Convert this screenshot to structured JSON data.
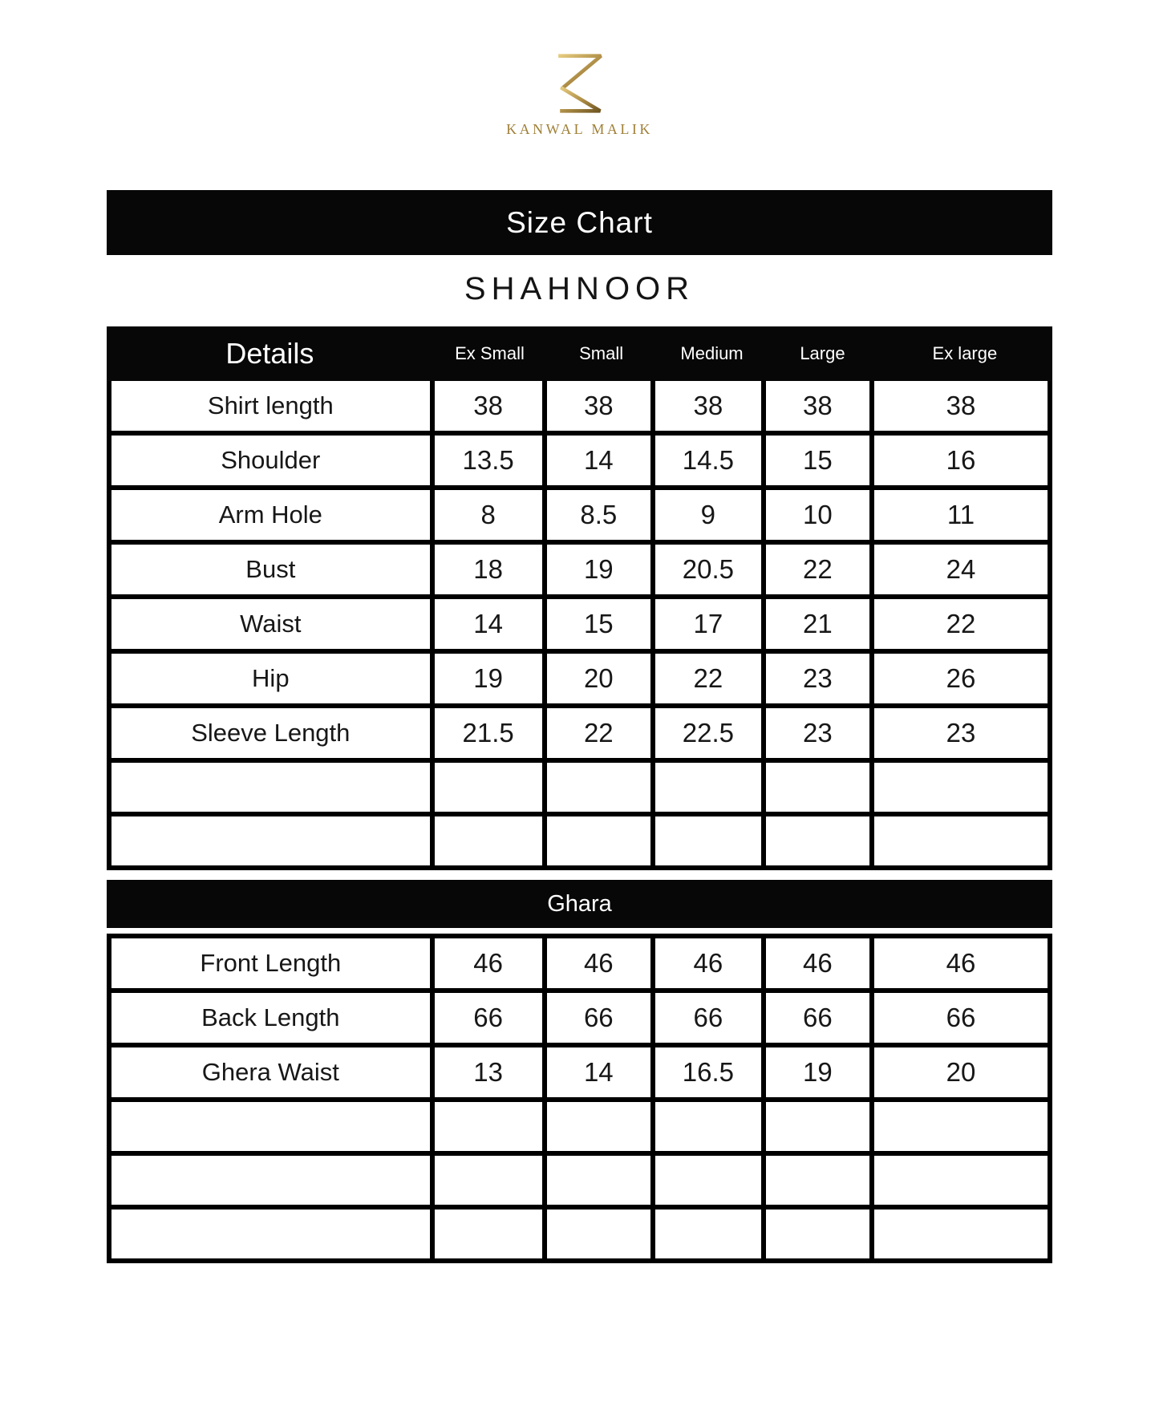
{
  "brand": {
    "logo_icon": "k-monogram-icon",
    "name": "KANWAL MALIK"
  },
  "colors": {
    "gold_light": "#e2c87c",
    "gold_mid": "#b3924a",
    "gold_dark": "#6f5520",
    "gold_text": "#a08038",
    "bar_black": "#070707",
    "line_black": "#000000",
    "text_black": "#171717"
  },
  "title_bar": {
    "label": "Size Chart"
  },
  "product": {
    "name": "SHAHNOOR"
  },
  "size_table": {
    "details_header": "Details",
    "size_headers": [
      "Ex Small",
      "Small",
      "Medium",
      "Large",
      "Ex large"
    ],
    "sections": [
      {
        "name": "shirt-measurements",
        "band_label": null,
        "rows": [
          {
            "label": "Shirt length",
            "values": [
              "38",
              "38",
              "38",
              "38",
              "38"
            ]
          },
          {
            "label": "Shoulder",
            "values": [
              "13.5",
              "14",
              "14.5",
              "15",
              "16"
            ]
          },
          {
            "label": "Arm Hole",
            "values": [
              "8",
              "8.5",
              "9",
              "10",
              "11"
            ]
          },
          {
            "label": "Bust",
            "values": [
              "18",
              "19",
              "20.5",
              "22",
              "24"
            ]
          },
          {
            "label": "Waist",
            "values": [
              "14",
              "15",
              "17",
              "21",
              "22"
            ]
          },
          {
            "label": "Hip",
            "values": [
              "19",
              "20",
              "22",
              "23",
              "26"
            ]
          },
          {
            "label": "Sleeve Length",
            "values": [
              "21.5",
              "22",
              "22.5",
              "23",
              "23"
            ]
          },
          {
            "label": "",
            "values": [
              "",
              "",
              "",
              "",
              ""
            ]
          },
          {
            "label": "",
            "values": [
              "",
              "",
              "",
              "",
              ""
            ]
          }
        ]
      },
      {
        "name": "ghara",
        "band_label": "Ghara",
        "rows": [
          {
            "label": "Front Length",
            "values": [
              "46",
              "46",
              "46",
              "46",
              "46"
            ]
          },
          {
            "label": "Back Length",
            "values": [
              "66",
              "66",
              "66",
              "66",
              "66"
            ]
          },
          {
            "label": "Ghera Waist",
            "values": [
              "13",
              "14",
              "16.5",
              "19",
              "20"
            ]
          },
          {
            "label": "",
            "values": [
              "",
              "",
              "",
              "",
              ""
            ]
          },
          {
            "label": "",
            "values": [
              "",
              "",
              "",
              "",
              ""
            ]
          },
          {
            "label": "",
            "values": [
              "",
              "",
              "",
              "",
              ""
            ]
          }
        ]
      }
    ]
  }
}
